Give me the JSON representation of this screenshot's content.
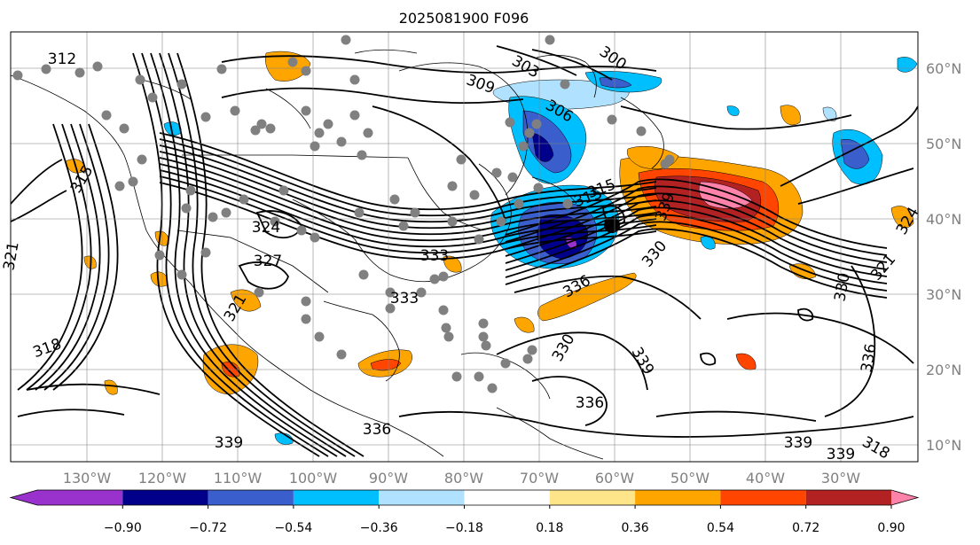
{
  "figure": {
    "title": "2025081900 F096"
  },
  "map": {
    "lon_ticks": [
      "130°W",
      "120°W",
      "110°W",
      "100°W",
      "90°W",
      "80°W",
      "70°W",
      "60°W",
      "50°W",
      "40°W",
      "30°W"
    ],
    "lat_ticks": [
      "60°N",
      "50°N",
      "40°N",
      "30°N",
      "20°N",
      "10°N"
    ],
    "contour_labels": [
      "312",
      "303",
      "300",
      "309",
      "306",
      "315",
      "315",
      "315",
      "321",
      "318",
      "321",
      "324",
      "327",
      "333",
      "333",
      "330",
      "336",
      "339",
      "330",
      "336",
      "339",
      "336",
      "339",
      "339",
      "318",
      "321",
      "324",
      "330",
      "336",
      "339"
    ]
  },
  "colorbar": {
    "ticks": [
      "−0.90",
      "−0.72",
      "−0.54",
      "−0.36",
      "−0.18",
      "0.18",
      "0.36",
      "0.54",
      "0.72",
      "0.90"
    ],
    "colors": [
      "#9932cc",
      "#00008b",
      "#3a5fcd",
      "#00bfff",
      "#b0e2ff",
      "#ffffff",
      "#ffe58a",
      "#ffa500",
      "#ff4500",
      "#b22222",
      "#ff82ab"
    ]
  }
}
